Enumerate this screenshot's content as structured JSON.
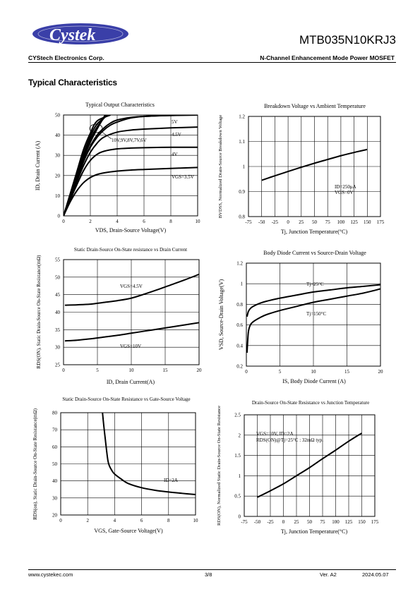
{
  "header": {
    "logo_text": "Cystek",
    "part_number": "MTB035N10KRJ3",
    "company": "CYStech Electronics Corp.",
    "device_type": "N-Channel Enhancement Mode Power MOSFET"
  },
  "section_title": "Typical Characteristics",
  "footer": {
    "website": "www.cystekec.com",
    "page": "3/8",
    "version": "Ver. A2",
    "date": "2024.05.07"
  },
  "chart_data": [
    {
      "type": "line",
      "title": "Typical Output Characteristics",
      "xlabel": "VDS, Drain-Source Voltage(V)",
      "ylabel": "ID, Drain Current (A)",
      "xlim": [
        0,
        10
      ],
      "ylim": [
        0,
        50
      ],
      "xticks": [
        0,
        2,
        4,
        6,
        8,
        10
      ],
      "yticks": [
        0,
        10,
        20,
        30,
        40,
        50
      ],
      "grid": true,
      "annotations": [
        "5V",
        "4.5V",
        "4V",
        "VGS=3.5V",
        "10V,9V,8V,7V,6V"
      ],
      "series": [
        {
          "name": "10V",
          "x": [
            0,
            0.5,
            1,
            1.5,
            2,
            2.5,
            3.5
          ],
          "y": [
            0,
            11,
            22,
            33,
            41,
            47,
            50
          ]
        },
        {
          "name": "9V",
          "x": [
            0,
            0.5,
            1,
            1.5,
            2,
            2.5,
            3.3
          ],
          "y": [
            0,
            10.5,
            21,
            31,
            39.5,
            45.5,
            50
          ]
        },
        {
          "name": "8V",
          "x": [
            0,
            0.5,
            1,
            1.5,
            2,
            2.5,
            3.2
          ],
          "y": [
            0,
            10,
            20,
            30,
            38,
            44,
            50
          ]
        },
        {
          "name": "7V",
          "x": [
            0,
            0.5,
            1,
            1.5,
            2,
            2.5,
            3.1
          ],
          "y": [
            0,
            9.5,
            19,
            28.5,
            36.5,
            43,
            50
          ]
        },
        {
          "name": "6V",
          "x": [
            0,
            0.5,
            1,
            1.5,
            2,
            2.5,
            3,
            3.5,
            4,
            5,
            6,
            7,
            8,
            10
          ],
          "y": [
            0,
            9,
            18,
            27,
            34.5,
            40,
            43.5,
            46,
            47.5,
            48.8,
            49.3,
            49.6,
            49.8,
            50
          ]
        },
        {
          "name": "5V",
          "x": [
            0,
            0.5,
            1,
            1.5,
            2,
            2.5,
            3,
            3.5,
            4,
            5,
            6,
            8,
            10
          ],
          "y": [
            0,
            9,
            18,
            27,
            34,
            39,
            42.5,
            45,
            46.5,
            48.5,
            49.3,
            49.8,
            50
          ]
        },
        {
          "name": "4.5V",
          "x": [
            0,
            0.5,
            1,
            1.5,
            2,
            2.5,
            3,
            4,
            5,
            6,
            8,
            10
          ],
          "y": [
            0,
            8.5,
            17,
            25,
            31.5,
            36,
            39,
            41.5,
            42.5,
            43,
            43.6,
            44
          ]
        },
        {
          "name": "4V",
          "x": [
            0,
            0.5,
            1,
            1.5,
            2,
            2.5,
            3,
            4,
            5,
            6,
            8,
            10
          ],
          "y": [
            0,
            8,
            15.5,
            22.5,
            27.5,
            30.5,
            32,
            33.2,
            33.6,
            33.8,
            34,
            34
          ]
        },
        {
          "name": "VGS=3.5V",
          "x": [
            0,
            0.5,
            1,
            1.5,
            2,
            2.5,
            3,
            4,
            5,
            6,
            8,
            10
          ],
          "y": [
            0,
            7,
            12.5,
            16.5,
            19,
            20.5,
            21.3,
            22.2,
            22.7,
            23,
            23.5,
            24
          ]
        }
      ]
    },
    {
      "type": "line",
      "title": "Breakdown Voltage vs Ambient Temperature",
      "xlabel": "Tj, Junction Temperature(°C)",
      "ylabel": "BVDSS, Normalized Drain-Source Breakdown Voltage",
      "xlim": [
        -75,
        175
      ],
      "ylim": [
        0.8,
        1.2
      ],
      "xticks": [
        -75,
        -50,
        -25,
        0,
        25,
        50,
        75,
        100,
        125,
        150,
        175
      ],
      "yticks": [
        0.8,
        0.9,
        1,
        1.1,
        1.2
      ],
      "grid": true,
      "annotations": [
        "ID=250μA",
        "VGS=0V"
      ],
      "series": [
        {
          "x": [
            -50,
            -25,
            0,
            25,
            50,
            75,
            100,
            125,
            150
          ],
          "y": [
            0.945,
            0.963,
            0.98,
            0.997,
            1.013,
            1.028,
            1.043,
            1.056,
            1.068
          ]
        }
      ]
    },
    {
      "type": "line",
      "title": "Static Drain-Source On-State resistance vs Drain Current",
      "xlabel": "ID, Drain Current(A)",
      "ylabel": "RDS(ON), Static Drain-Source On-State Resistance(mΩ)",
      "xlim": [
        0,
        20
      ],
      "ylim": [
        25,
        55
      ],
      "xticks": [
        0,
        5,
        10,
        15,
        20
      ],
      "yticks": [
        25,
        30,
        35,
        40,
        45,
        50,
        55
      ],
      "grid": true,
      "annotations": [
        "VGS=4.5V",
        "VGS=10V"
      ],
      "series": [
        {
          "name": "VGS=4.5V",
          "x": [
            0.2,
            2,
            4,
            6,
            8,
            10,
            12,
            14,
            16,
            18,
            20
          ],
          "y": [
            42,
            42.1,
            42.3,
            42.8,
            43.3,
            44,
            45.2,
            46.5,
            47.9,
            49.3,
            50.8
          ]
        },
        {
          "name": "VGS=10V",
          "x": [
            0.2,
            2,
            4,
            6,
            8,
            10,
            12,
            14,
            16,
            18,
            20
          ],
          "y": [
            31.8,
            32,
            32.4,
            32.9,
            33.4,
            34,
            34.6,
            35.2,
            35.8,
            36.4,
            37
          ]
        }
      ]
    },
    {
      "type": "line",
      "title": "Body Diode Current vs Source-Drain Voltage",
      "xlabel": "IS, Body Diode Current (A)",
      "ylabel": "VSD, Source-Drain Voltage(V)",
      "xlim": [
        0,
        20
      ],
      "ylim": [
        0.2,
        1.2
      ],
      "xticks": [
        0,
        5,
        10,
        15,
        20
      ],
      "yticks": [
        0.2,
        0.4,
        0.6,
        0.8,
        1,
        1.2
      ],
      "grid": true,
      "annotations": [
        "Tj=25°C",
        "Tj=150°C"
      ],
      "series": [
        {
          "name": "Tj=25°C",
          "x": [
            0.1,
            0.3,
            0.6,
            1,
            2,
            3,
            5,
            7.5,
            10,
            12.5,
            15,
            17.5,
            20
          ],
          "y": [
            0.68,
            0.73,
            0.76,
            0.78,
            0.81,
            0.83,
            0.86,
            0.89,
            0.92,
            0.94,
            0.96,
            0.975,
            0.99
          ]
        },
        {
          "name": "Tj=150°C",
          "x": [
            0.1,
            0.3,
            0.6,
            1,
            2,
            3,
            5,
            7.5,
            10,
            12.5,
            15,
            17.5,
            20
          ],
          "y": [
            0.33,
            0.53,
            0.6,
            0.63,
            0.67,
            0.7,
            0.74,
            0.78,
            0.82,
            0.85,
            0.88,
            0.91,
            0.95
          ]
        }
      ]
    },
    {
      "type": "line",
      "title": "Static Drain-Source On-State Resistance vs Gate-Source Voltage",
      "xlabel": "VGS, Gate-Source Voltage(V)",
      "ylabel": "RDS(on), Static Drain-Source On-State Resistance(mΩ)",
      "xlim": [
        0,
        10
      ],
      "ylim": [
        20,
        80
      ],
      "xticks": [
        0,
        2,
        4,
        6,
        8,
        10
      ],
      "yticks": [
        20,
        30,
        40,
        50,
        60,
        70,
        80
      ],
      "grid": true,
      "annotations": [
        "ID=2A"
      ],
      "series": [
        {
          "x": [
            3.1,
            3.2,
            3.3,
            3.4,
            3.5,
            3.6,
            3.8,
            4,
            4.5,
            5,
            6,
            7,
            8,
            9,
            10
          ],
          "y": [
            80,
            72,
            65,
            58,
            52,
            49,
            46,
            44,
            41,
            38.5,
            36,
            34.5,
            33.5,
            32.7,
            32
          ]
        }
      ]
    },
    {
      "type": "line",
      "title": "Drain-Source On-State Resistance vs Junction Temperature",
      "xlabel": "Tj, Junction Temperature(°C)",
      "ylabel": "RDS(ON), Normalized Static Drain-Source On-State Resistance",
      "xlim": [
        -75,
        175
      ],
      "ylim": [
        0,
        2.5
      ],
      "xticks": [
        -75,
        -50,
        -25,
        0,
        25,
        50,
        75,
        100,
        125,
        150,
        175
      ],
      "yticks": [
        0,
        0.5,
        1,
        1.5,
        2,
        2.5
      ],
      "grid": true,
      "annotations": [
        "VGS=10V, ID=2A",
        "RDS(ON)@Tj=25°C : 32mΩ typ."
      ],
      "series": [
        {
          "x": [
            -50,
            -25,
            0,
            25,
            50,
            75,
            100,
            125,
            150
          ],
          "y": [
            0.47,
            0.63,
            0.8,
            1.0,
            1.2,
            1.42,
            1.63,
            1.85,
            2.05
          ]
        }
      ]
    }
  ]
}
